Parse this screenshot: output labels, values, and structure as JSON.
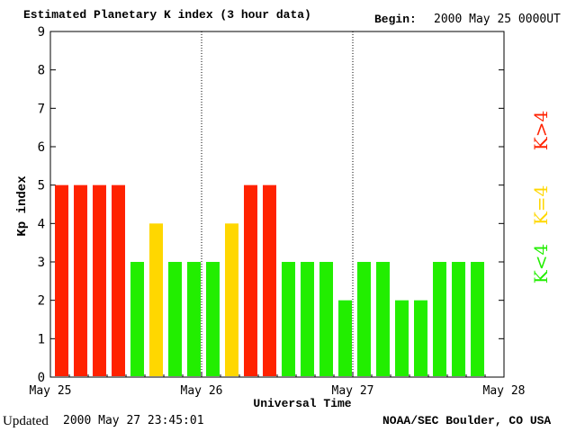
{
  "header": {
    "title": "Estimated Planetary K index (3 hour data)",
    "begin_label": "Begin:",
    "begin_value": "2000 May 25 0000UT"
  },
  "footer": {
    "updated_label": "Updated",
    "updated_value": "2000 May 27 23:45:01",
    "credit": "NOAA/SEC Boulder, CO USA"
  },
  "legend": [
    {
      "label": "K>4",
      "color": "#ff2200"
    },
    {
      "label": "K=4",
      "color": "#ffd700"
    },
    {
      "label": "K<4",
      "color": "#22ee00"
    }
  ],
  "chart_data": {
    "type": "bar",
    "title": "Estimated Planetary K index (3 hour data)",
    "xlabel": "Universal Time",
    "ylabel": "Kp index",
    "ylim": [
      0,
      9
    ],
    "yticks": [
      "0",
      "1",
      "2",
      "3",
      "4",
      "5",
      "6",
      "7",
      "8",
      "9"
    ],
    "xticks": [
      "May 25",
      "May 26",
      "May 27",
      "May 28"
    ],
    "bars_per_day": 8,
    "days": 3,
    "values": [
      5,
      5,
      5,
      5,
      3,
      4,
      3,
      3,
      3,
      4,
      5,
      5,
      3,
      3,
      3,
      2,
      3,
      3,
      2,
      2,
      3,
      3,
      3
    ],
    "colors": {
      "above4": "#ff2200",
      "equal4": "#ffd700",
      "below4": "#22ee00"
    },
    "grid": "dotted vertical day separators"
  }
}
